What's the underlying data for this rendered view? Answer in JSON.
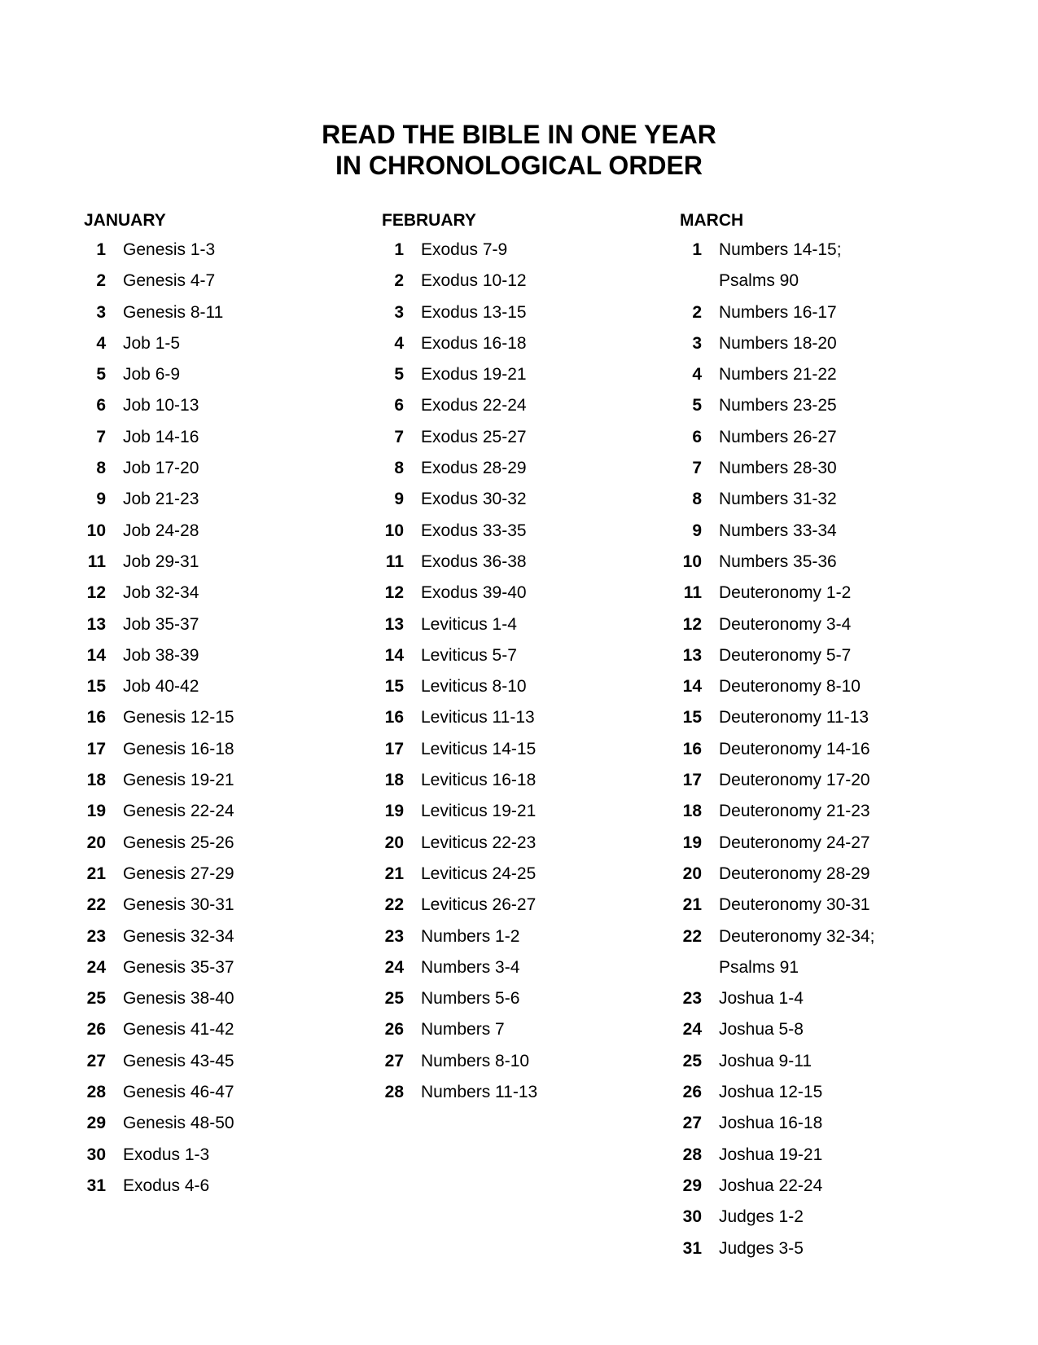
{
  "title": {
    "line1": "READ THE BIBLE IN ONE YEAR",
    "line2": "IN CHRONOLOGICAL ORDER"
  },
  "columns": [
    {
      "month": "JANUARY",
      "entries": [
        {
          "day": "1",
          "lines": [
            "Genesis 1-3"
          ]
        },
        {
          "day": "2",
          "lines": [
            "Genesis 4-7"
          ]
        },
        {
          "day": "3",
          "lines": [
            "Genesis 8-11"
          ]
        },
        {
          "day": "4",
          "lines": [
            "Job 1-5"
          ]
        },
        {
          "day": "5",
          "lines": [
            "Job 6-9"
          ]
        },
        {
          "day": "6",
          "lines": [
            "Job 10-13"
          ]
        },
        {
          "day": "7",
          "lines": [
            "Job 14-16"
          ]
        },
        {
          "day": "8",
          "lines": [
            "Job 17-20"
          ]
        },
        {
          "day": "9",
          "lines": [
            "Job 21-23"
          ]
        },
        {
          "day": "10",
          "lines": [
            "Job 24-28"
          ]
        },
        {
          "day": "11",
          "lines": [
            "Job 29-31"
          ]
        },
        {
          "day": "12",
          "lines": [
            "Job 32-34"
          ]
        },
        {
          "day": "13",
          "lines": [
            "Job 35-37"
          ]
        },
        {
          "day": "14",
          "lines": [
            "Job 38-39"
          ]
        },
        {
          "day": "15",
          "lines": [
            "Job 40-42"
          ]
        },
        {
          "day": "16",
          "lines": [
            "Genesis 12-15"
          ]
        },
        {
          "day": "17",
          "lines": [
            "Genesis 16-18"
          ]
        },
        {
          "day": "18",
          "lines": [
            "Genesis 19-21"
          ]
        },
        {
          "day": "19",
          "lines": [
            "Genesis 22-24"
          ]
        },
        {
          "day": "20",
          "lines": [
            "Genesis 25-26"
          ]
        },
        {
          "day": "21",
          "lines": [
            "Genesis 27-29"
          ]
        },
        {
          "day": "22",
          "lines": [
            "Genesis 30-31"
          ]
        },
        {
          "day": "23",
          "lines": [
            "Genesis 32-34"
          ]
        },
        {
          "day": "24",
          "lines": [
            "Genesis 35-37"
          ]
        },
        {
          "day": "25",
          "lines": [
            "Genesis 38-40"
          ]
        },
        {
          "day": "26",
          "lines": [
            "Genesis 41-42"
          ]
        },
        {
          "day": "27",
          "lines": [
            "Genesis 43-45"
          ]
        },
        {
          "day": "28",
          "lines": [
            "Genesis 46-47"
          ]
        },
        {
          "day": "29",
          "lines": [
            "Genesis 48-50"
          ]
        },
        {
          "day": "30",
          "lines": [
            "Exodus 1-3"
          ]
        },
        {
          "day": "31",
          "lines": [
            "Exodus 4-6"
          ]
        }
      ]
    },
    {
      "month": "FEBRUARY",
      "entries": [
        {
          "day": "1",
          "lines": [
            "Exodus 7-9"
          ]
        },
        {
          "day": "2",
          "lines": [
            "Exodus 10-12"
          ]
        },
        {
          "day": "3",
          "lines": [
            "Exodus 13-15"
          ]
        },
        {
          "day": "4",
          "lines": [
            "Exodus 16-18"
          ]
        },
        {
          "day": "5",
          "lines": [
            "Exodus 19-21"
          ]
        },
        {
          "day": "6",
          "lines": [
            "Exodus 22-24"
          ]
        },
        {
          "day": "7",
          "lines": [
            "Exodus 25-27"
          ]
        },
        {
          "day": "8",
          "lines": [
            "Exodus 28-29"
          ]
        },
        {
          "day": "9",
          "lines": [
            "Exodus 30-32"
          ]
        },
        {
          "day": "10",
          "lines": [
            "Exodus 33-35"
          ]
        },
        {
          "day": "11",
          "lines": [
            "Exodus 36-38"
          ]
        },
        {
          "day": "12",
          "lines": [
            "Exodus 39-40"
          ]
        },
        {
          "day": "13",
          "lines": [
            "Leviticus 1-4"
          ]
        },
        {
          "day": "14",
          "lines": [
            "Leviticus 5-7"
          ]
        },
        {
          "day": "15",
          "lines": [
            "Leviticus 8-10"
          ]
        },
        {
          "day": "16",
          "lines": [
            "Leviticus 11-13"
          ]
        },
        {
          "day": "17",
          "lines": [
            "Leviticus 14-15"
          ]
        },
        {
          "day": "18",
          "lines": [
            "Leviticus 16-18"
          ]
        },
        {
          "day": "19",
          "lines": [
            "Leviticus 19-21"
          ]
        },
        {
          "day": "20",
          "lines": [
            "Leviticus 22-23"
          ]
        },
        {
          "day": "21",
          "lines": [
            "Leviticus 24-25"
          ]
        },
        {
          "day": "22",
          "lines": [
            "Leviticus 26-27"
          ]
        },
        {
          "day": "23",
          "lines": [
            "Numbers 1-2"
          ]
        },
        {
          "day": "24",
          "lines": [
            "Numbers 3-4"
          ]
        },
        {
          "day": "25",
          "lines": [
            "Numbers 5-6"
          ]
        },
        {
          "day": "26",
          "lines": [
            "Numbers 7"
          ]
        },
        {
          "day": "27",
          "lines": [
            "Numbers 8-10"
          ]
        },
        {
          "day": "28",
          "lines": [
            "Numbers 11-13"
          ]
        }
      ]
    },
    {
      "month": "MARCH",
      "entries": [
        {
          "day": "1",
          "lines": [
            "Numbers 14-15;",
            "Psalms 90"
          ]
        },
        {
          "day": "2",
          "lines": [
            "Numbers 16-17"
          ]
        },
        {
          "day": "3",
          "lines": [
            "Numbers 18-20"
          ]
        },
        {
          "day": "4",
          "lines": [
            "Numbers 21-22"
          ]
        },
        {
          "day": "5",
          "lines": [
            "Numbers 23-25"
          ]
        },
        {
          "day": "6",
          "lines": [
            "Numbers 26-27"
          ]
        },
        {
          "day": "7",
          "lines": [
            "Numbers 28-30"
          ]
        },
        {
          "day": "8",
          "lines": [
            "Numbers 31-32"
          ]
        },
        {
          "day": "9",
          "lines": [
            "Numbers 33-34"
          ]
        },
        {
          "day": "10",
          "lines": [
            "Numbers 35-36"
          ]
        },
        {
          "day": "11",
          "lines": [
            "Deuteronomy 1-2"
          ]
        },
        {
          "day": "12",
          "lines": [
            "Deuteronomy 3-4"
          ]
        },
        {
          "day": "13",
          "lines": [
            "Deuteronomy 5-7"
          ]
        },
        {
          "day": "14",
          "lines": [
            "Deuteronomy 8-10"
          ]
        },
        {
          "day": "15",
          "lines": [
            "Deuteronomy 11-13"
          ]
        },
        {
          "day": "16",
          "lines": [
            "Deuteronomy 14-16"
          ]
        },
        {
          "day": "17",
          "lines": [
            "Deuteronomy 17-20"
          ]
        },
        {
          "day": "18",
          "lines": [
            "Deuteronomy 21-23"
          ]
        },
        {
          "day": "19",
          "lines": [
            "Deuteronomy 24-27"
          ]
        },
        {
          "day": "20",
          "lines": [
            "Deuteronomy 28-29"
          ]
        },
        {
          "day": "21",
          "lines": [
            "Deuteronomy 30-31"
          ]
        },
        {
          "day": "22",
          "lines": [
            "Deuteronomy 32-34;",
            "Psalms 91"
          ]
        },
        {
          "day": "23",
          "lines": [
            "Joshua 1-4"
          ]
        },
        {
          "day": "24",
          "lines": [
            "Joshua 5-8"
          ]
        },
        {
          "day": "25",
          "lines": [
            "Joshua 9-11"
          ]
        },
        {
          "day": "26",
          "lines": [
            "Joshua 12-15"
          ]
        },
        {
          "day": "27",
          "lines": [
            "Joshua 16-18"
          ]
        },
        {
          "day": "28",
          "lines": [
            "Joshua 19-21"
          ]
        },
        {
          "day": "29",
          "lines": [
            "Joshua 22-24"
          ]
        },
        {
          "day": "30",
          "lines": [
            "Judges 1-2"
          ]
        },
        {
          "day": "31",
          "lines": [
            "Judges 3-5"
          ]
        }
      ]
    }
  ]
}
